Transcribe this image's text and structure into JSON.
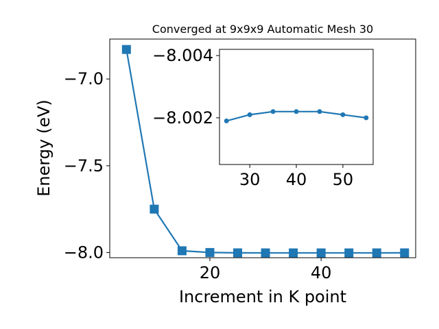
{
  "chart_data": [
    {
      "type": "line",
      "title": "Converged at 9x9x9 Automatic Mesh 30",
      "xlabel": "Increment in K point",
      "ylabel": "Energy (eV)",
      "xlim": [
        2,
        57
      ],
      "ylim": [
        -8.03,
        -6.77
      ],
      "xticks": [
        20,
        40
      ],
      "xtick_labels": [
        "20",
        "40"
      ],
      "yticks": [
        -7.0,
        -7.5,
        -8.0
      ],
      "ytick_labels": [
        "−7.0",
        "−7.5",
        "−8.0"
      ],
      "grid": false,
      "marker": "square",
      "color": "#1f77b4",
      "series": [
        {
          "x": [
            5,
            10,
            15,
            20,
            25,
            30,
            35,
            40,
            45,
            50,
            55
          ],
          "y": [
            -6.83,
            -7.75,
            -7.99,
            -8.0,
            -8.0019,
            -8.0021,
            -8.0022,
            -8.0022,
            -8.0022,
            -8.0021,
            -8.002
          ]
        }
      ]
    },
    {
      "type": "line",
      "role": "inset",
      "xlim": [
        23.5,
        56.5
      ],
      "ylim": [
        -8.0005,
        -8.0042
      ],
      "xticks": [
        30,
        40,
        50
      ],
      "xtick_labels": [
        "30",
        "40",
        "50"
      ],
      "yticks": [
        -8.002,
        -8.004
      ],
      "ytick_labels": [
        "−8.002",
        "−8.004"
      ],
      "grid": false,
      "marker": "circle",
      "color": "#1f77b4",
      "series": [
        {
          "x": [
            25,
            30,
            35,
            40,
            45,
            50,
            55
          ],
          "y": [
            -8.0019,
            -8.0021,
            -8.0022,
            -8.0022,
            -8.0022,
            -8.0021,
            -8.002
          ]
        }
      ]
    }
  ]
}
